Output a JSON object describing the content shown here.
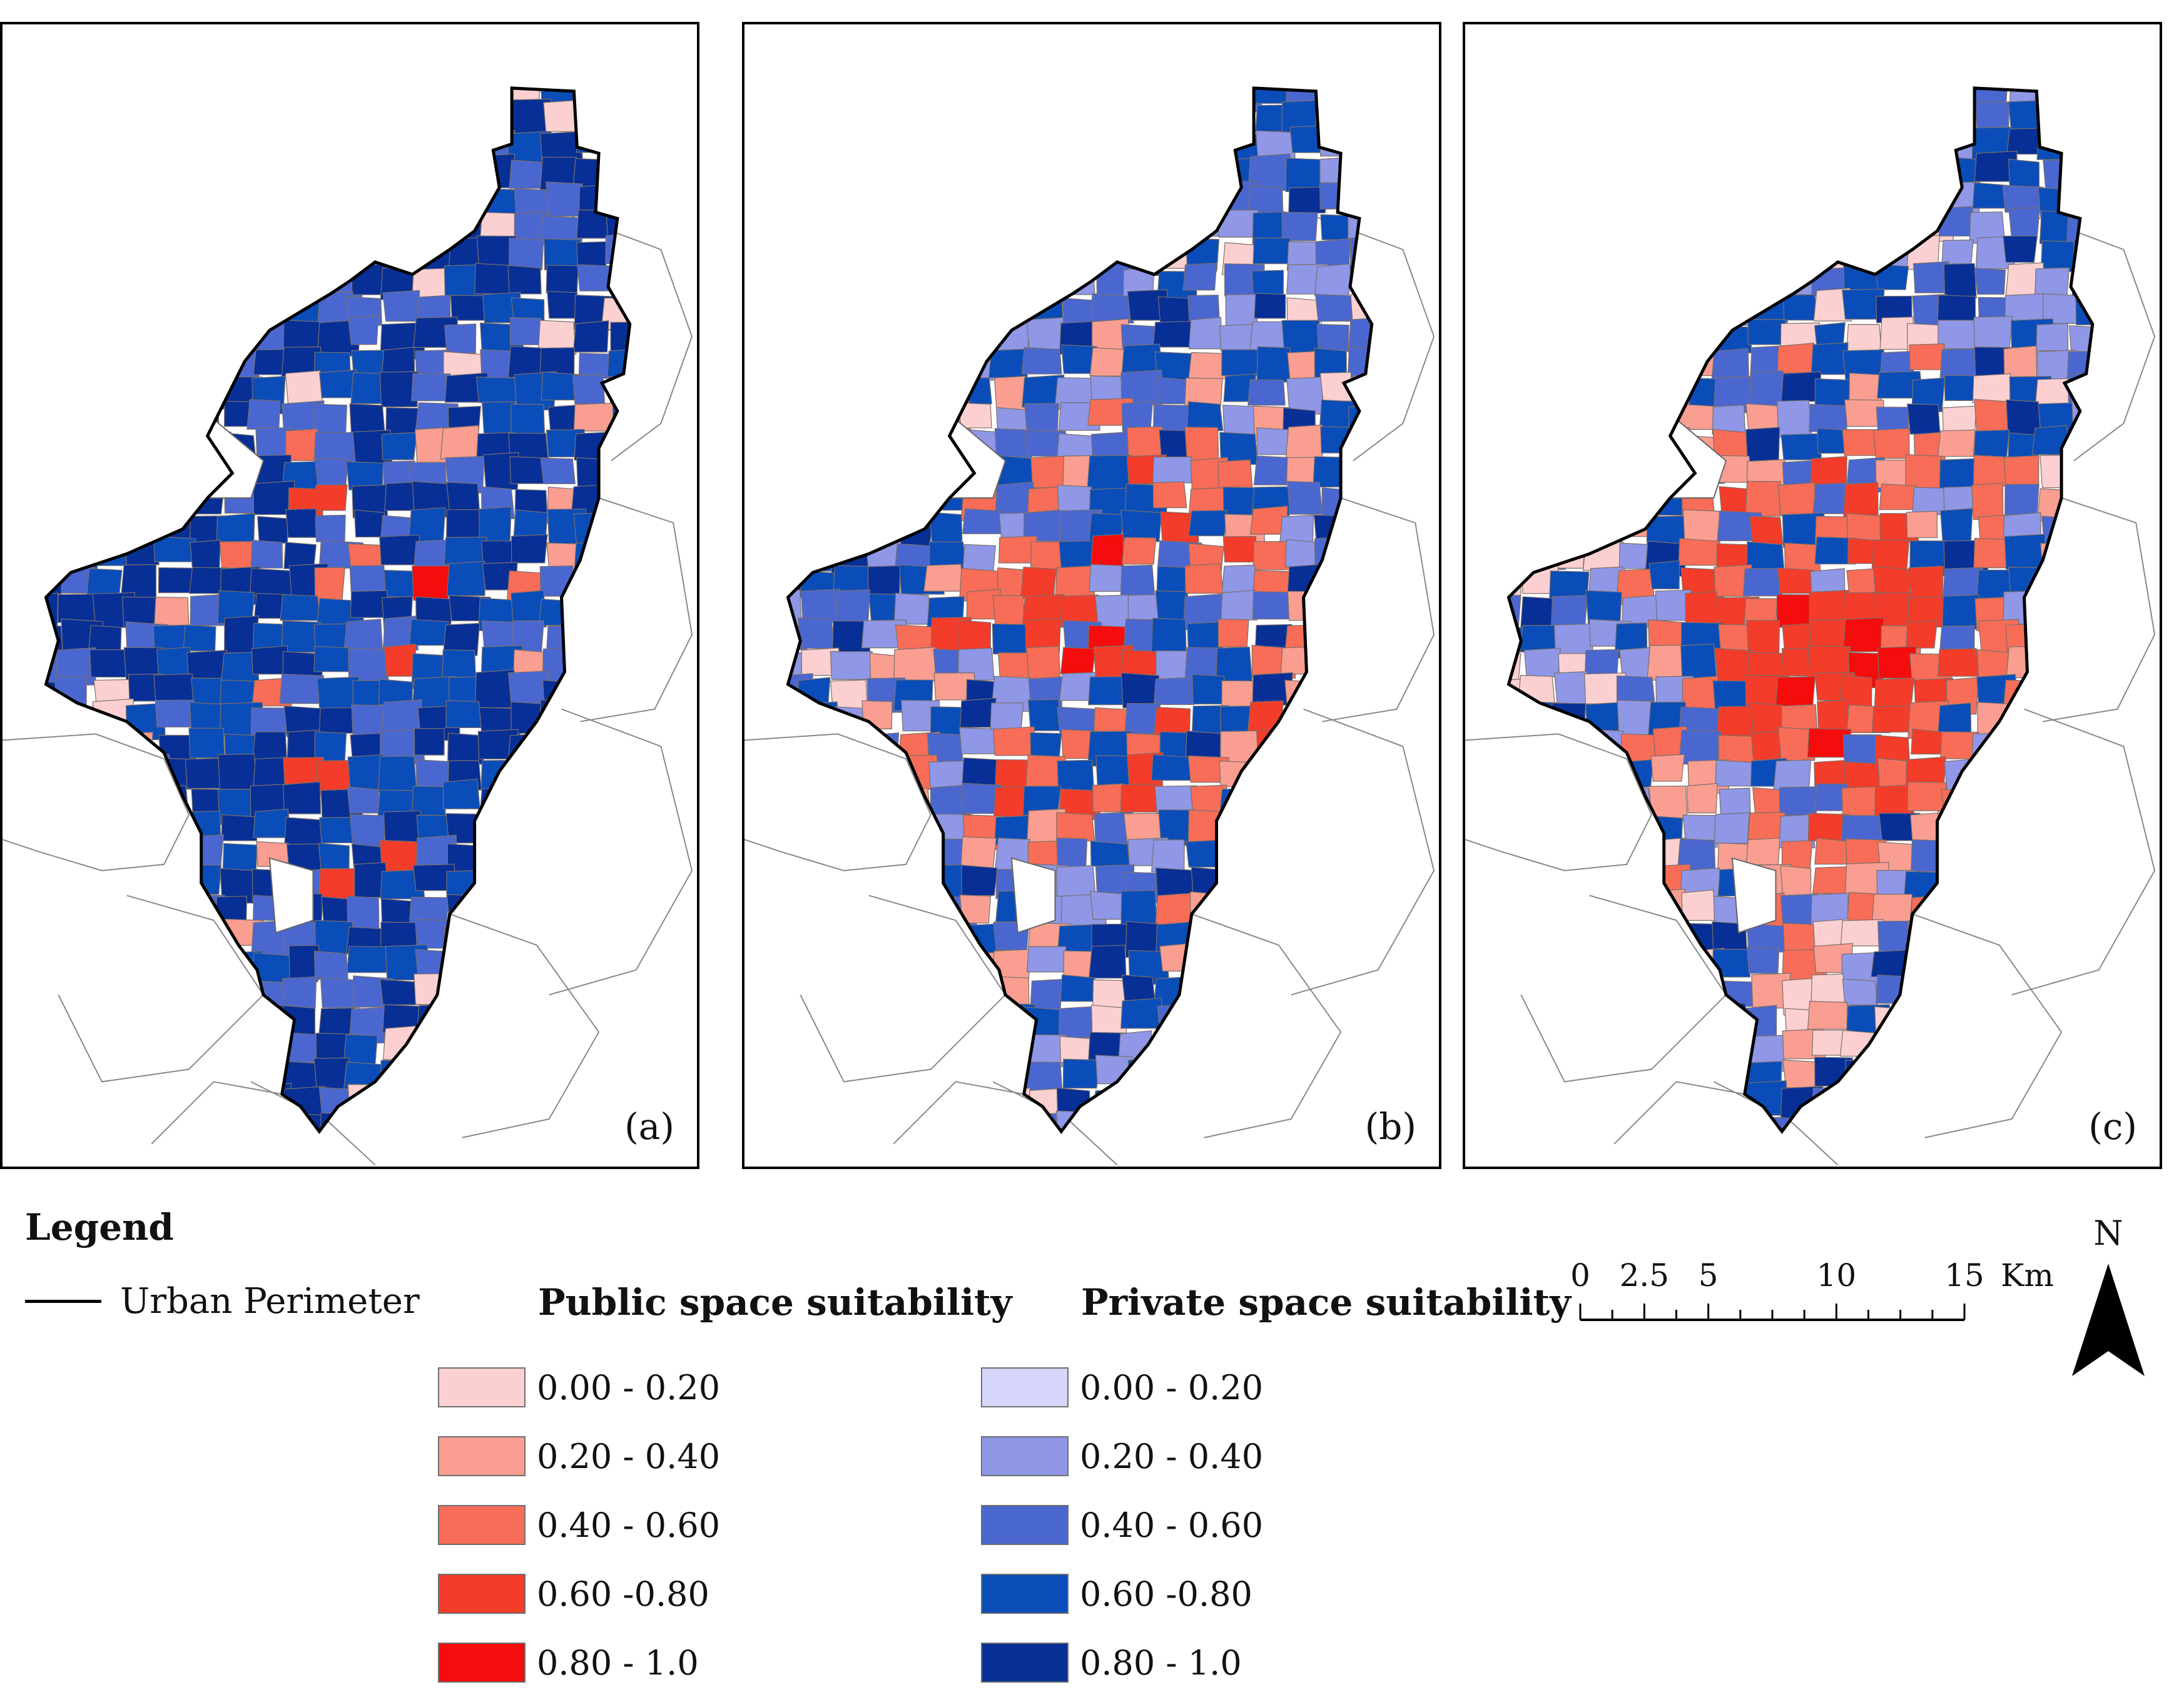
{
  "panels": [
    {
      "label": "(a)",
      "scenario": "a",
      "red_share": 0.07
    },
    {
      "label": "(b)",
      "scenario": "b",
      "red_share": 0.45
    },
    {
      "label": "(c)",
      "scenario": "c",
      "red_share": 0.68
    }
  ],
  "legend": {
    "title": "Legend",
    "perimeter_label": "Urban Perimeter",
    "public": {
      "title": "Public space suitability",
      "classes": [
        {
          "label": "0.00 - 0.20",
          "color": "#fcd0d0"
        },
        {
          "label": "0.20 - 0.40",
          "color": "#f99e91"
        },
        {
          "label": "0.40 - 0.60",
          "color": "#f76d57"
        },
        {
          "label": "0.60 -0.80",
          "color": "#f43c2a"
        },
        {
          "label": "0.80 - 1.0",
          "color": "#f50c0c"
        }
      ]
    },
    "private": {
      "title": "Private space suitability",
      "classes": [
        {
          "label": "0.00 - 0.20",
          "color": "#d6d6fb"
        },
        {
          "label": "0.20 - 0.40",
          "color": "#8f97e6"
        },
        {
          "label": "0.40 - 0.60",
          "color": "#4a67d0"
        },
        {
          "label": "0.60 -0.80",
          "color": "#0a4db8"
        },
        {
          "label": "0.80 - 1.0",
          "color": "#072f96"
        }
      ]
    }
  },
  "scale_bar": {
    "ticks": [
      "0",
      "2.5",
      "5",
      "10",
      "15"
    ],
    "tick_values": [
      0,
      2.5,
      5,
      10,
      15
    ],
    "unit": "Km"
  },
  "north_label": "N"
}
